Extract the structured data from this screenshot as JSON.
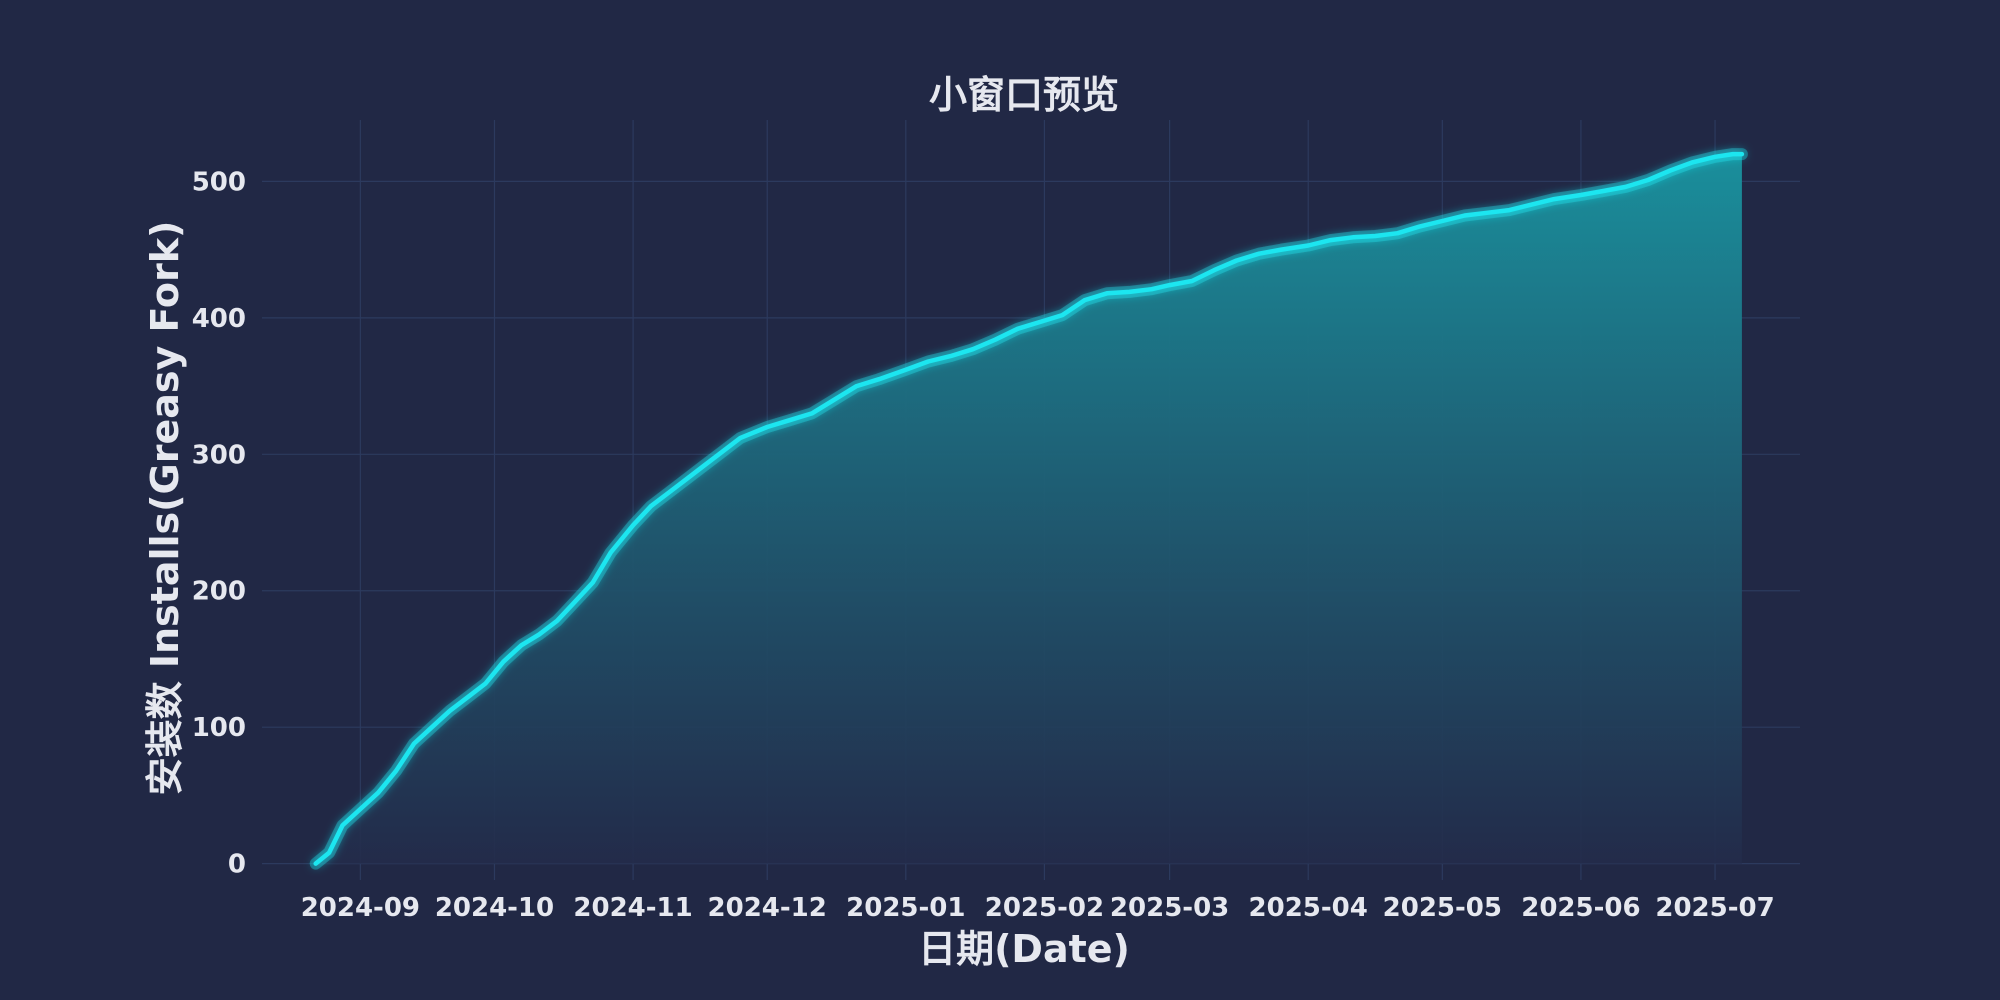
{
  "chart_data": {
    "type": "area",
    "title": "小窗口预览",
    "xlabel": "日期(Date)",
    "ylabel": "安装数 Installs(Greasy Fork)",
    "x_axis": "date",
    "xlim": [
      "2024-08-10",
      "2025-07-20"
    ],
    "ylim": [
      -12,
      545
    ],
    "xticks": [
      "2024-09-01",
      "2024-10-01",
      "2024-11-01",
      "2024-12-01",
      "2025-01-01",
      "2025-02-01",
      "2025-03-01",
      "2025-04-01",
      "2025-05-01",
      "2025-06-01",
      "2025-07-01"
    ],
    "xtick_labels": [
      "2024-09",
      "2024-10",
      "2024-11",
      "2024-12",
      "2025-01",
      "2025-02",
      "2025-03",
      "2025-04",
      "2025-05",
      "2025-06",
      "2025-07"
    ],
    "yticks": [
      0,
      100,
      200,
      300,
      400,
      500
    ],
    "grid": true,
    "colors": {
      "line": "#1ee6f0",
      "fill_top": "#1a8f9c",
      "fill_bottom": "#232b4a",
      "background": "#212845"
    },
    "series": [
      {
        "x": [
          "2024-08-22",
          "2024-08-25",
          "2024-08-28",
          "2024-09-01",
          "2024-09-05",
          "2024-09-09",
          "2024-09-13",
          "2024-09-17",
          "2024-09-21",
          "2024-09-25",
          "2024-09-29",
          "2024-10-03",
          "2024-10-07",
          "2024-10-11",
          "2024-10-15",
          "2024-10-19",
          "2024-10-23",
          "2024-10-27",
          "2024-11-01",
          "2024-11-05",
          "2024-11-09",
          "2024-11-13",
          "2024-11-17",
          "2024-11-21",
          "2024-11-25",
          "2024-12-01",
          "2024-12-06",
          "2024-12-11",
          "2024-12-16",
          "2024-12-21",
          "2024-12-26",
          "2025-01-01",
          "2025-01-06",
          "2025-01-11",
          "2025-01-16",
          "2025-01-21",
          "2025-01-26",
          "2025-02-01",
          "2025-02-05",
          "2025-02-10",
          "2025-02-15",
          "2025-02-20",
          "2025-02-25",
          "2025-03-01",
          "2025-03-06",
          "2025-03-11",
          "2025-03-16",
          "2025-03-21",
          "2025-03-26",
          "2025-04-01",
          "2025-04-06",
          "2025-04-11",
          "2025-04-16",
          "2025-04-21",
          "2025-04-26",
          "2025-05-01",
          "2025-05-06",
          "2025-05-11",
          "2025-05-16",
          "2025-05-21",
          "2025-05-26",
          "2025-06-01",
          "2025-06-06",
          "2025-06-11",
          "2025-06-16",
          "2025-06-21",
          "2025-06-26",
          "2025-07-01",
          "2025-07-05",
          "2025-07-07"
        ],
        "y": [
          0,
          8,
          28,
          40,
          52,
          68,
          88,
          100,
          112,
          122,
          132,
          148,
          160,
          168,
          178,
          192,
          206,
          228,
          248,
          262,
          272,
          282,
          292,
          302,
          312,
          320,
          325,
          330,
          340,
          350,
          355,
          362,
          368,
          372,
          377,
          384,
          392,
          398,
          402,
          413,
          418,
          419,
          421,
          424,
          427,
          435,
          442,
          447,
          450,
          453,
          457,
          459,
          460,
          462,
          467,
          471,
          475,
          477,
          479,
          483,
          487,
          490,
          493,
          496,
          501,
          508,
          514,
          518,
          520,
          520
        ]
      }
    ]
  }
}
